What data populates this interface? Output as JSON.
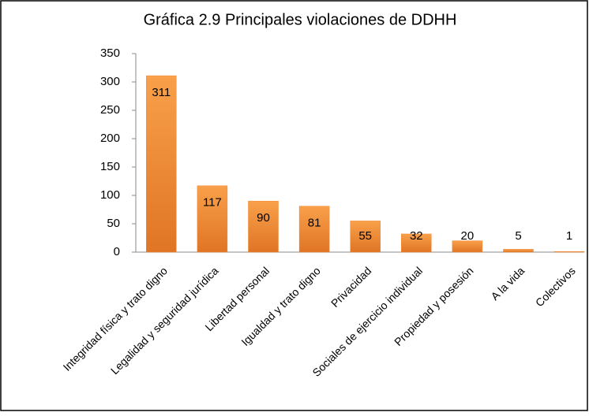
{
  "chart_data": {
    "type": "bar",
    "title": "Gráfica 2.9  Principales violaciones de DDHH",
    "categories": [
      "Integridad física y trato digno",
      "Legalidad y seguridad jurídica",
      "Libertad personal",
      "Igualdad y trato digno",
      "Privacidad",
      "Sociales de ejercicio individual",
      "Propiedad y posesión",
      "A la vida",
      "Colectivos"
    ],
    "values": [
      311,
      117,
      90,
      81,
      55,
      32,
      20,
      5,
      1
    ],
    "color": "#f0862e",
    "ylim": [
      0,
      350
    ],
    "yticks": [
      0,
      50,
      100,
      150,
      200,
      250,
      300,
      350
    ],
    "grid": false
  }
}
